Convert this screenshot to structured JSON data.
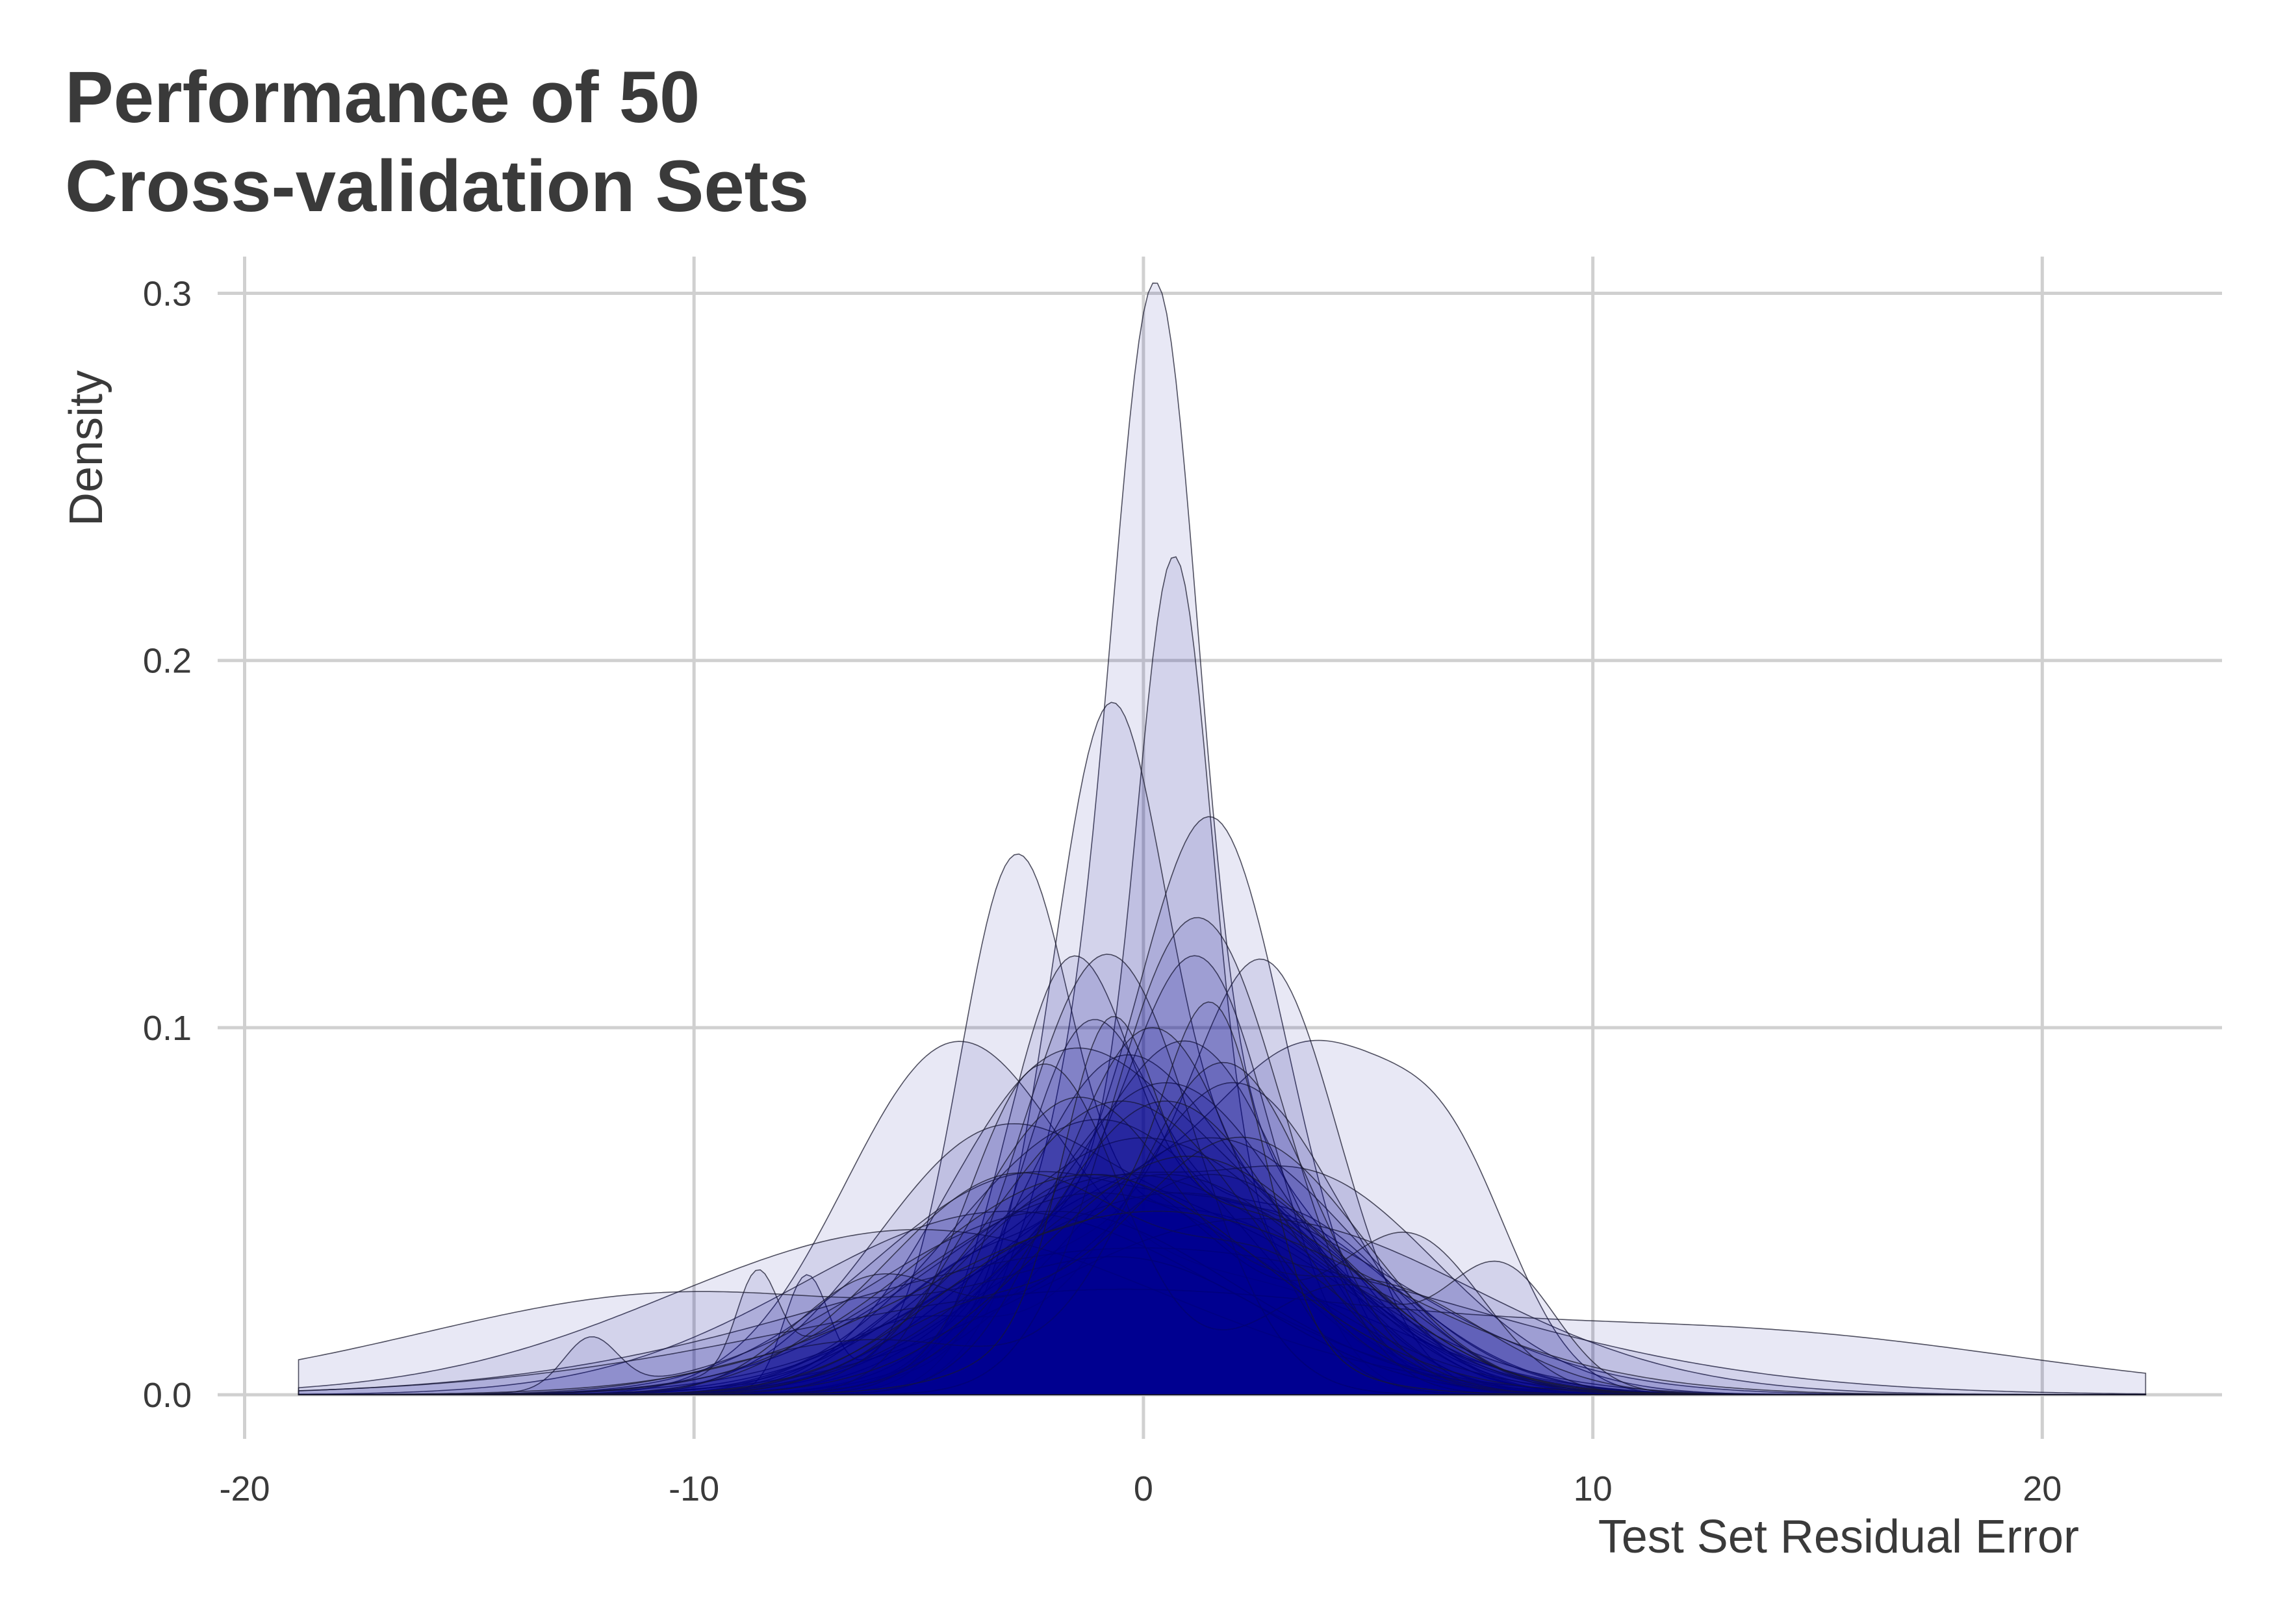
{
  "chart_data": {
    "type": "area",
    "title_lines": [
      "Performance of 50",
      "Cross-validation Sets"
    ],
    "xlabel": "Test Set Residual Error",
    "ylabel": "Density",
    "xlim": [
      -20.6,
      24
    ],
    "ylim": [
      -0.012,
      0.31
    ],
    "x_ticks": [
      -20,
      -10,
      0,
      10,
      20
    ],
    "x_tick_labels": [
      "-20",
      "-10",
      "0",
      "10",
      "20"
    ],
    "y_ticks": [
      0.0,
      0.1,
      0.2,
      0.3
    ],
    "y_tick_labels": [
      "0.0",
      "0.1",
      "0.2",
      "0.3"
    ],
    "grid": true,
    "fill_color": "#00008B",
    "fill_alpha": 0.09,
    "line_color": "#1a1a2e",
    "x_range_of_curves": [
      -18.8,
      22.3
    ],
    "series": [
      {
        "peaks": [
          {
            "x": 0.3,
            "sd": 0.9,
            "h": 0.2
          },
          {
            "x": -0.8,
            "sd": 1.6,
            "h": 0.07
          },
          {
            "x": 2.0,
            "sd": 2.5,
            "h": 0.06
          }
        ]
      },
      {
        "peaks": [
          {
            "x": 0.7,
            "sd": 0.8,
            "h": 0.17
          },
          {
            "x": 0.0,
            "sd": 3.0,
            "h": 0.06
          }
        ]
      },
      {
        "peaks": [
          {
            "x": -0.8,
            "sd": 1.2,
            "h": 0.14
          },
          {
            "x": 1.2,
            "sd": 3.0,
            "h": 0.06
          }
        ]
      },
      {
        "peaks": [
          {
            "x": -2.9,
            "sd": 1.2,
            "h": 0.12
          },
          {
            "x": 1.0,
            "sd": 3.5,
            "h": 0.05
          },
          {
            "x": -7.5,
            "sd": 0.5,
            "h": 0.03
          }
        ]
      },
      {
        "peaks": [
          {
            "x": 1.6,
            "sd": 1.6,
            "h": 0.13
          },
          {
            "x": -1.5,
            "sd": 3.5,
            "h": 0.04
          }
        ]
      },
      {
        "peaks": [
          {
            "x": -1.7,
            "sd": 1.4,
            "h": 0.1
          },
          {
            "x": 2.5,
            "sd": 3.0,
            "h": 0.05
          }
        ]
      },
      {
        "peaks": [
          {
            "x": 4.0,
            "sd": 2.2,
            "h": 0.08
          },
          {
            "x": 7.0,
            "sd": 1.4,
            "h": 0.04
          },
          {
            "x": -1.0,
            "sd": 3.0,
            "h": 0.05
          }
        ]
      },
      {
        "peaks": [
          {
            "x": -4.3,
            "sd": 2.4,
            "h": 0.09
          },
          {
            "x": 2.0,
            "sd": 3.5,
            "h": 0.03
          }
        ]
      },
      {
        "peaks": [
          {
            "x": 2.8,
            "sd": 1.6,
            "h": 0.1
          },
          {
            "x": -1.0,
            "sd": 3.0,
            "h": 0.04
          }
        ]
      },
      {
        "peaks": [
          {
            "x": -1.3,
            "sd": 1.5,
            "h": 0.09
          },
          {
            "x": 3.0,
            "sd": 2.5,
            "h": 0.05
          }
        ]
      },
      {
        "peaks": [
          {
            "x": 1.3,
            "sd": 1.6,
            "h": 0.11
          },
          {
            "x": -3.0,
            "sd": 2.5,
            "h": 0.04
          }
        ]
      },
      {
        "peaks": [
          {
            "x": -0.5,
            "sd": 2.2,
            "h": 0.09
          },
          {
            "x": 4.0,
            "sd": 2.0,
            "h": 0.03
          }
        ]
      },
      {
        "peaks": [
          {
            "x": 1.0,
            "sd": 2.2,
            "h": 0.095
          },
          {
            "x": -4.0,
            "sd": 2.0,
            "h": 0.03
          }
        ]
      },
      {
        "peaks": [
          {
            "x": -2.0,
            "sd": 2.5,
            "h": 0.085
          },
          {
            "x": 2.5,
            "sd": 2.5,
            "h": 0.04
          }
        ]
      },
      {
        "peaks": [
          {
            "x": 0.5,
            "sd": 2.8,
            "h": 0.085
          }
        ]
      },
      {
        "peaks": [
          {
            "x": -3.5,
            "sd": 2.6,
            "h": 0.065
          },
          {
            "x": 2.0,
            "sd": 3.0,
            "h": 0.04
          }
        ]
      },
      {
        "peaks": [
          {
            "x": 2.0,
            "sd": 2.4,
            "h": 0.085
          },
          {
            "x": -5.0,
            "sd": 2.0,
            "h": 0.02
          }
        ]
      },
      {
        "peaks": [
          {
            "x": -1.0,
            "sd": 3.2,
            "h": 0.075
          }
        ]
      },
      {
        "peaks": [
          {
            "x": 0.0,
            "sd": 3.6,
            "h": 0.07
          }
        ]
      },
      {
        "peaks": [
          {
            "x": 1.5,
            "sd": 3.2,
            "h": 0.07
          }
        ]
      },
      {
        "peaks": [
          {
            "x": -2.5,
            "sd": 3.5,
            "h": 0.06
          },
          {
            "x": 3.0,
            "sd": 2.0,
            "h": 0.03
          }
        ]
      },
      {
        "peaks": [
          {
            "x": 3.5,
            "sd": 3.0,
            "h": 0.06
          },
          {
            "x": -1.5,
            "sd": 2.0,
            "h": 0.04
          }
        ]
      },
      {
        "peaks": [
          {
            "x": -0.3,
            "sd": 4.2,
            "h": 0.06
          }
        ]
      },
      {
        "peaks": [
          {
            "x": 0.8,
            "sd": 4.5,
            "h": 0.055
          }
        ]
      },
      {
        "peaks": [
          {
            "x": -3.0,
            "sd": 4.6,
            "h": 0.05
          }
        ]
      },
      {
        "peaks": [
          {
            "x": 2.5,
            "sd": 4.8,
            "h": 0.048
          }
        ]
      },
      {
        "peaks": [
          {
            "x": -5.0,
            "sd": 5.5,
            "h": 0.045
          }
        ]
      },
      {
        "peaks": [
          {
            "x": 0.0,
            "sd": 7.0,
            "h": 0.04
          }
        ]
      },
      {
        "peaks": [
          {
            "x": -12.3,
            "sd": 0.6,
            "h": 0.014
          },
          {
            "x": -2.0,
            "sd": 4.0,
            "h": 0.05
          }
        ]
      },
      {
        "peaks": [
          {
            "x": -8.6,
            "sd": 0.45,
            "h": 0.025
          },
          {
            "x": -1.0,
            "sd": 4.0,
            "h": 0.055
          }
        ]
      },
      {
        "peaks": [
          {
            "x": -1.0,
            "sd": 7.0,
            "h": 0.028
          },
          {
            "x": 14.0,
            "sd": 6.0,
            "h": 0.015
          }
        ]
      },
      {
        "peaks": [
          {
            "x": -10.0,
            "sd": 6.0,
            "h": 0.028
          },
          {
            "x": 0.0,
            "sd": 3.0,
            "h": 0.03
          }
        ]
      },
      {
        "peaks": [
          {
            "x": 6.0,
            "sd": 1.6,
            "h": 0.04
          },
          {
            "x": -1.0,
            "sd": 3.0,
            "h": 0.06
          }
        ]
      },
      {
        "peaks": [
          {
            "x": -6.0,
            "sd": 1.8,
            "h": 0.03
          },
          {
            "x": 1.5,
            "sd": 3.0,
            "h": 0.06
          }
        ]
      },
      {
        "peaks": [
          {
            "x": 8.0,
            "sd": 1.2,
            "h": 0.03
          },
          {
            "x": 0.5,
            "sd": 3.5,
            "h": 0.06
          }
        ]
      },
      {
        "peaks": [
          {
            "x": -0.8,
            "sd": 1.9,
            "h": 0.12
          }
        ]
      },
      {
        "peaks": [
          {
            "x": 1.2,
            "sd": 1.9,
            "h": 0.13
          }
        ]
      },
      {
        "peaks": [
          {
            "x": -2.2,
            "sd": 1.7,
            "h": 0.09
          },
          {
            "x": 4.5,
            "sd": 2.0,
            "h": 0.03
          }
        ]
      },
      {
        "peaks": [
          {
            "x": 0.2,
            "sd": 2.0,
            "h": 0.1
          }
        ]
      },
      {
        "peaks": [
          {
            "x": 1.8,
            "sd": 2.0,
            "h": 0.09
          },
          {
            "x": -6.0,
            "sd": 3.0,
            "h": 0.015
          }
        ]
      },
      {
        "peaks": [
          {
            "x": -1.5,
            "sd": 2.3,
            "h": 0.08
          },
          {
            "x": 5.0,
            "sd": 2.5,
            "h": 0.03
          }
        ]
      },
      {
        "peaks": [
          {
            "x": 0.5,
            "sd": 2.6,
            "h": 0.08
          }
        ]
      },
      {
        "peaks": [
          {
            "x": -0.5,
            "sd": 2.9,
            "h": 0.08
          }
        ]
      },
      {
        "peaks": [
          {
            "x": 2.2,
            "sd": 2.7,
            "h": 0.07
          },
          {
            "x": -4.0,
            "sd": 2.0,
            "h": 0.02
          }
        ]
      },
      {
        "peaks": [
          {
            "x": -2.8,
            "sd": 2.9,
            "h": 0.06
          },
          {
            "x": 3.0,
            "sd": 2.0,
            "h": 0.03
          }
        ]
      },
      {
        "peaks": [
          {
            "x": 1.0,
            "sd": 3.3,
            "h": 0.065
          }
        ]
      },
      {
        "peaks": [
          {
            "x": -1.2,
            "sd": 3.8,
            "h": 0.06
          }
        ]
      },
      {
        "peaks": [
          {
            "x": 0.3,
            "sd": 5.0,
            "h": 0.05
          }
        ]
      },
      {
        "peaks": [
          {
            "x": -0.8,
            "sd": 1.0,
            "h": 0.07
          },
          {
            "x": 2.0,
            "sd": 3.0,
            "h": 0.05
          }
        ]
      },
      {
        "peaks": [
          {
            "x": 1.6,
            "sd": 1.1,
            "h": 0.08
          },
          {
            "x": -1.5,
            "sd": 3.0,
            "h": 0.045
          }
        ]
      }
    ]
  }
}
